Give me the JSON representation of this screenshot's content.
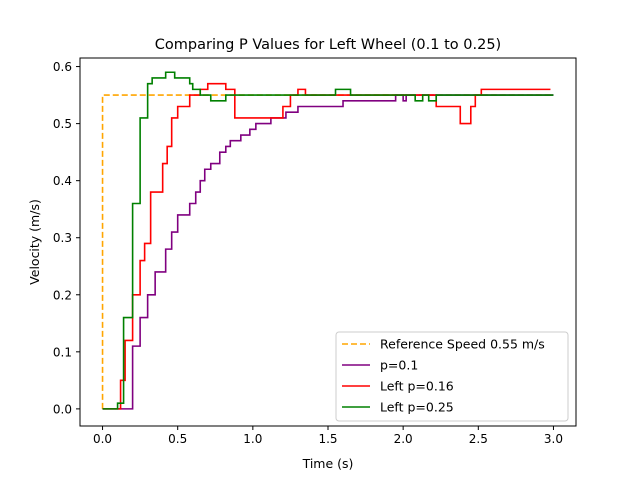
{
  "chart_data": {
    "type": "line",
    "title": "Comparing P Values for Left Wheel (0.1 to 0.25)",
    "xlabel": "Time (s)",
    "ylabel": "Velocity (m/s)",
    "xlim": [
      -0.15,
      3.15
    ],
    "ylim": [
      -0.03,
      0.615
    ],
    "xticks": [
      0.0,
      0.5,
      1.0,
      1.5,
      2.0,
      2.5,
      3.0
    ],
    "xtick_labels": [
      "0.0",
      "0.5",
      "1.0",
      "1.5",
      "2.0",
      "2.5",
      "3.0"
    ],
    "yticks": [
      0.0,
      0.1,
      0.2,
      0.3,
      0.4,
      0.5,
      0.6
    ],
    "ytick_labels": [
      "0.0",
      "0.1",
      "0.2",
      "0.3",
      "0.4",
      "0.5",
      "0.6"
    ],
    "grid": false,
    "legend_position": "lower-right",
    "series": [
      {
        "name": "Reference Speed 0.55 m/s",
        "color": "#ffa500",
        "style": "dashed",
        "x": [
          0.0,
          0.0,
          0.0,
          3.0
        ],
        "y": [
          0.0,
          0.0,
          0.55,
          0.55
        ]
      },
      {
        "name": "p=0.1",
        "color": "#800080",
        "style": "solid",
        "x": [
          0.0,
          0.2,
          0.2,
          0.25,
          0.25,
          0.3,
          0.3,
          0.35,
          0.35,
          0.42,
          0.42,
          0.46,
          0.46,
          0.5,
          0.5,
          0.58,
          0.58,
          0.62,
          0.62,
          0.65,
          0.65,
          0.68,
          0.68,
          0.72,
          0.72,
          0.78,
          0.78,
          0.82,
          0.82,
          0.85,
          0.85,
          0.88,
          0.88,
          0.92,
          0.92,
          0.98,
          0.98,
          1.02,
          1.02,
          1.08,
          1.08,
          1.12,
          1.12,
          1.18,
          1.18,
          1.22,
          1.22,
          1.3,
          1.3,
          1.4,
          1.4,
          1.6,
          1.6,
          1.75,
          1.75,
          1.95,
          1.95,
          2.0,
          2.0,
          2.02,
          2.02,
          3.0
        ],
        "y": [
          0.0,
          0.0,
          0.11,
          0.11,
          0.16,
          0.16,
          0.2,
          0.2,
          0.24,
          0.24,
          0.28,
          0.28,
          0.31,
          0.31,
          0.34,
          0.34,
          0.36,
          0.36,
          0.38,
          0.38,
          0.4,
          0.4,
          0.42,
          0.42,
          0.43,
          0.43,
          0.45,
          0.45,
          0.46,
          0.46,
          0.47,
          0.47,
          0.47,
          0.47,
          0.48,
          0.48,
          0.49,
          0.49,
          0.5,
          0.5,
          0.5,
          0.5,
          0.51,
          0.51,
          0.51,
          0.51,
          0.52,
          0.52,
          0.53,
          0.53,
          0.53,
          0.53,
          0.54,
          0.54,
          0.54,
          0.54,
          0.55,
          0.55,
          0.54,
          0.54,
          0.55,
          0.55
        ]
      },
      {
        "name": "Left p=0.16",
        "color": "#ff0000",
        "style": "solid",
        "x": [
          0.0,
          0.12,
          0.12,
          0.15,
          0.15,
          0.2,
          0.2,
          0.25,
          0.25,
          0.28,
          0.28,
          0.32,
          0.32,
          0.4,
          0.4,
          0.43,
          0.43,
          0.46,
          0.46,
          0.5,
          0.5,
          0.58,
          0.58,
          0.65,
          0.65,
          0.7,
          0.7,
          0.82,
          0.82,
          0.88,
          0.88,
          1.2,
          1.2,
          1.25,
          1.25,
          1.3,
          1.3,
          1.35,
          1.35,
          2.22,
          2.22,
          2.38,
          2.38,
          2.45,
          2.45,
          2.48,
          2.48,
          2.52,
          2.52,
          2.65,
          2.65,
          2.98
        ],
        "y": [
          0.0,
          0.0,
          0.05,
          0.05,
          0.12,
          0.12,
          0.2,
          0.2,
          0.26,
          0.26,
          0.29,
          0.29,
          0.38,
          0.38,
          0.43,
          0.43,
          0.46,
          0.46,
          0.51,
          0.51,
          0.53,
          0.53,
          0.55,
          0.55,
          0.56,
          0.56,
          0.57,
          0.57,
          0.56,
          0.56,
          0.51,
          0.51,
          0.53,
          0.53,
          0.55,
          0.55,
          0.56,
          0.56,
          0.55,
          0.55,
          0.53,
          0.53,
          0.5,
          0.5,
          0.53,
          0.53,
          0.55,
          0.55,
          0.56,
          0.56,
          0.56,
          0.56
        ]
      },
      {
        "name": "Left p=0.25",
        "color": "#008000",
        "style": "solid",
        "x": [
          0.0,
          0.1,
          0.1,
          0.14,
          0.14,
          0.2,
          0.2,
          0.25,
          0.25,
          0.3,
          0.3,
          0.33,
          0.33,
          0.42,
          0.42,
          0.48,
          0.48,
          0.58,
          0.58,
          0.6,
          0.6,
          0.65,
          0.65,
          0.72,
          0.72,
          0.82,
          0.82,
          1.0,
          1.0,
          1.18,
          1.18,
          1.55,
          1.55,
          1.65,
          1.65,
          2.08,
          2.08,
          2.13,
          2.13,
          2.17,
          2.17,
          2.22,
          2.22,
          2.3,
          2.3,
          3.0
        ],
        "y": [
          0.0,
          0.0,
          0.01,
          0.01,
          0.16,
          0.16,
          0.36,
          0.36,
          0.51,
          0.51,
          0.57,
          0.57,
          0.58,
          0.58,
          0.59,
          0.59,
          0.58,
          0.58,
          0.57,
          0.57,
          0.56,
          0.56,
          0.55,
          0.55,
          0.54,
          0.54,
          0.55,
          0.55,
          0.55,
          0.55,
          0.55,
          0.55,
          0.56,
          0.56,
          0.55,
          0.55,
          0.54,
          0.54,
          0.55,
          0.55,
          0.54,
          0.54,
          0.55,
          0.55,
          0.55,
          0.55
        ]
      }
    ]
  }
}
